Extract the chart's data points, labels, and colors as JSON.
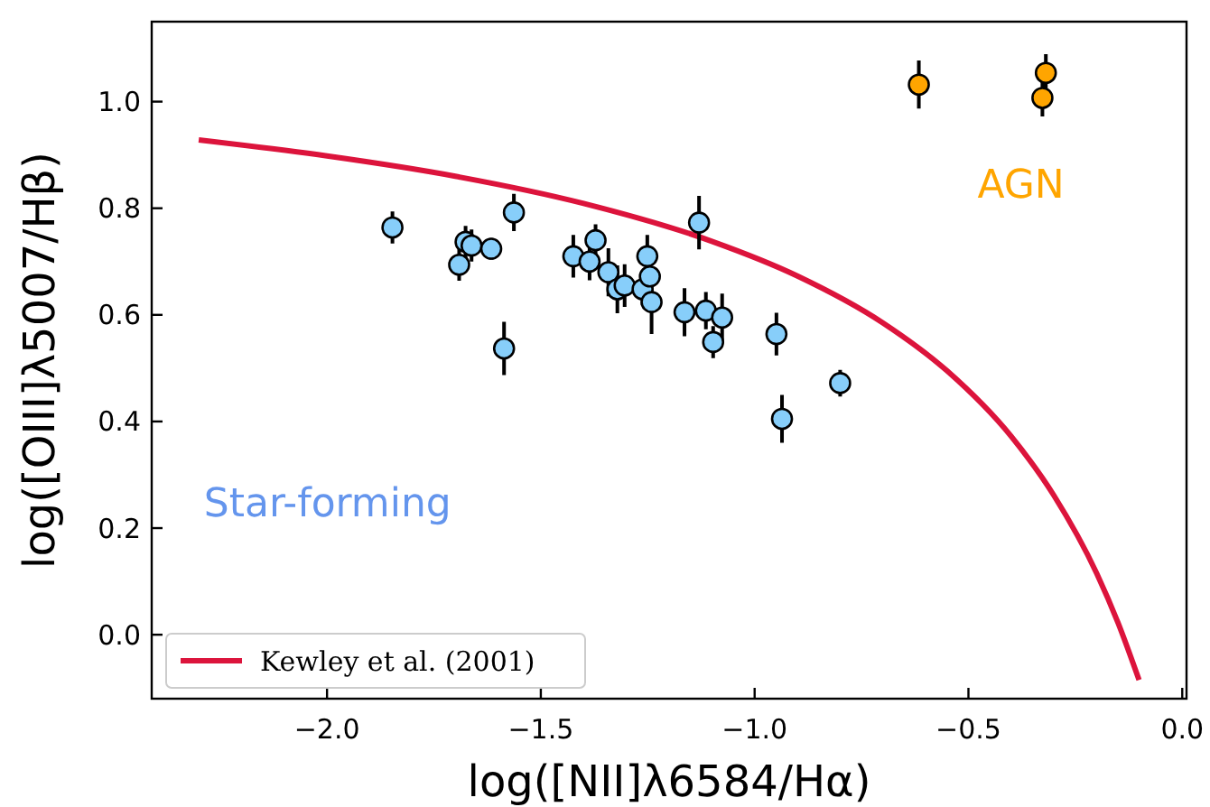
{
  "chart_data": {
    "type": "scatter",
    "xlabel": "log([NII]λ6584/Hα)",
    "ylabel": "log([OIII]λ5007/Hβ)",
    "xlim": [
      -2.41,
      0.01
    ],
    "ylim": [
      -0.12,
      1.15
    ],
    "xticks": [
      {
        "value": -2,
        "label": "−2.0"
      },
      {
        "value": -1.5,
        "label": "−1.5"
      },
      {
        "value": -1,
        "label": "−1.0"
      },
      {
        "value": -0.5,
        "label": "−0.5"
      },
      {
        "value": 0,
        "label": "0.0"
      }
    ],
    "yticks": [
      {
        "value": 0,
        "label": "0.0"
      },
      {
        "value": 0.2,
        "label": "0.2"
      },
      {
        "value": 0.4,
        "label": "0.4"
      },
      {
        "value": 0.6,
        "label": "0.6"
      },
      {
        "value": 0.8,
        "label": "0.8"
      },
      {
        "value": 1,
        "label": "1.0"
      }
    ],
    "grid": false,
    "legend": "bottom left",
    "marker": "circle",
    "annotations": [
      "Star-forming",
      "AGN"
    ],
    "series": [
      {
        "type": "line",
        "name": "Kewley et al. (2001)",
        "color": "#dc143c",
        "line_style": "solid",
        "marker": "none",
        "x": [
          -2.3,
          -2.0,
          -1.7,
          -1.4,
          -1.1,
          -0.9,
          -0.7,
          -0.55,
          -0.4,
          -0.3,
          -0.2,
          -0.15,
          -0.101
        ],
        "values": [
          0.928,
          0.898,
          0.86,
          0.809,
          0.738,
          0.673,
          0.585,
          0.495,
          0.372,
          0.261,
          0.115,
          0.022,
          -0.085
        ]
      },
      {
        "type": "scatter",
        "color": "#87cefa",
        "x": [
          -1.847,
          -1.691,
          -1.676,
          -1.662,
          -1.616,
          -1.586,
          -1.563,
          -1.424,
          -1.386,
          -1.372,
          -1.342,
          -1.321,
          -1.304,
          -1.262,
          -1.251,
          -1.245,
          -1.241,
          -1.164,
          -1.13,
          -1.114,
          -1.097,
          -1.076,
          -0.949,
          -0.936,
          -0.8
        ],
        "values": [
          0.764,
          0.694,
          0.737,
          0.73,
          0.724,
          0.537,
          0.792,
          0.71,
          0.7,
          0.74,
          0.68,
          0.648,
          0.655,
          0.648,
          0.71,
          0.672,
          0.624,
          0.605,
          0.773,
          0.608,
          0.549,
          0.595,
          0.564,
          0.405,
          0.472
        ],
        "errors": [
          0.03,
          0.03,
          0.03,
          0.03,
          0.02,
          0.05,
          0.035,
          0.04,
          0.035,
          0.03,
          0.045,
          0.045,
          0.04,
          0.03,
          0.04,
          0.03,
          0.06,
          0.045,
          0.05,
          0.035,
          0.03,
          0.045,
          0.04,
          0.045,
          0.025
        ]
      },
      {
        "type": "scatter",
        "color": "#ffa500",
        "x": [
          -0.616,
          -0.319,
          -0.327
        ],
        "values": [
          1.032,
          1.054,
          1.007
        ],
        "errors": [
          0.045,
          0.035,
          0.035
        ]
      }
    ]
  }
}
